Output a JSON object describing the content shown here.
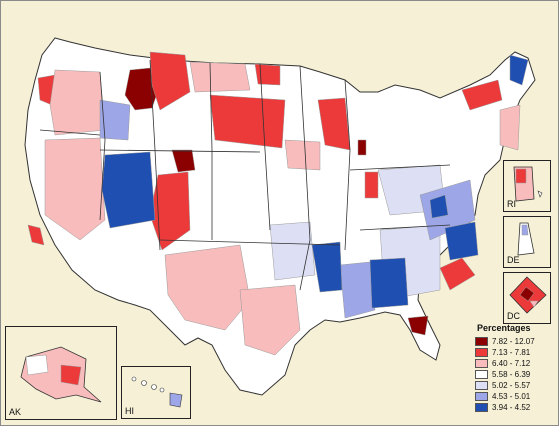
{
  "legend": {
    "title": "Percentages",
    "classes": [
      {
        "label": "7.82 - 12.07",
        "color": "#8b0000"
      },
      {
        "label": "7.13 - 7.81",
        "color": "#ec3a3a"
      },
      {
        "label": "6.40 - 7.12",
        "color": "#f8bcbc"
      },
      {
        "label": "5.58 - 6.39",
        "color": "#ffffff"
      },
      {
        "label": "5.02 - 5.57",
        "color": "#dde0f4"
      },
      {
        "label": "4.53 - 5.01",
        "color": "#9da6e6"
      },
      {
        "label": "3.94 - 4.52",
        "color": "#1f4fb0"
      }
    ]
  },
  "insets": {
    "alaska": "AK",
    "hawaii": "HI",
    "rhode_island": "RI",
    "delaware": "DE",
    "dc": "DC"
  },
  "colors": {
    "background": "#f5f0d6",
    "state_border": "#333333",
    "region_border": "#9a9a9a"
  }
}
